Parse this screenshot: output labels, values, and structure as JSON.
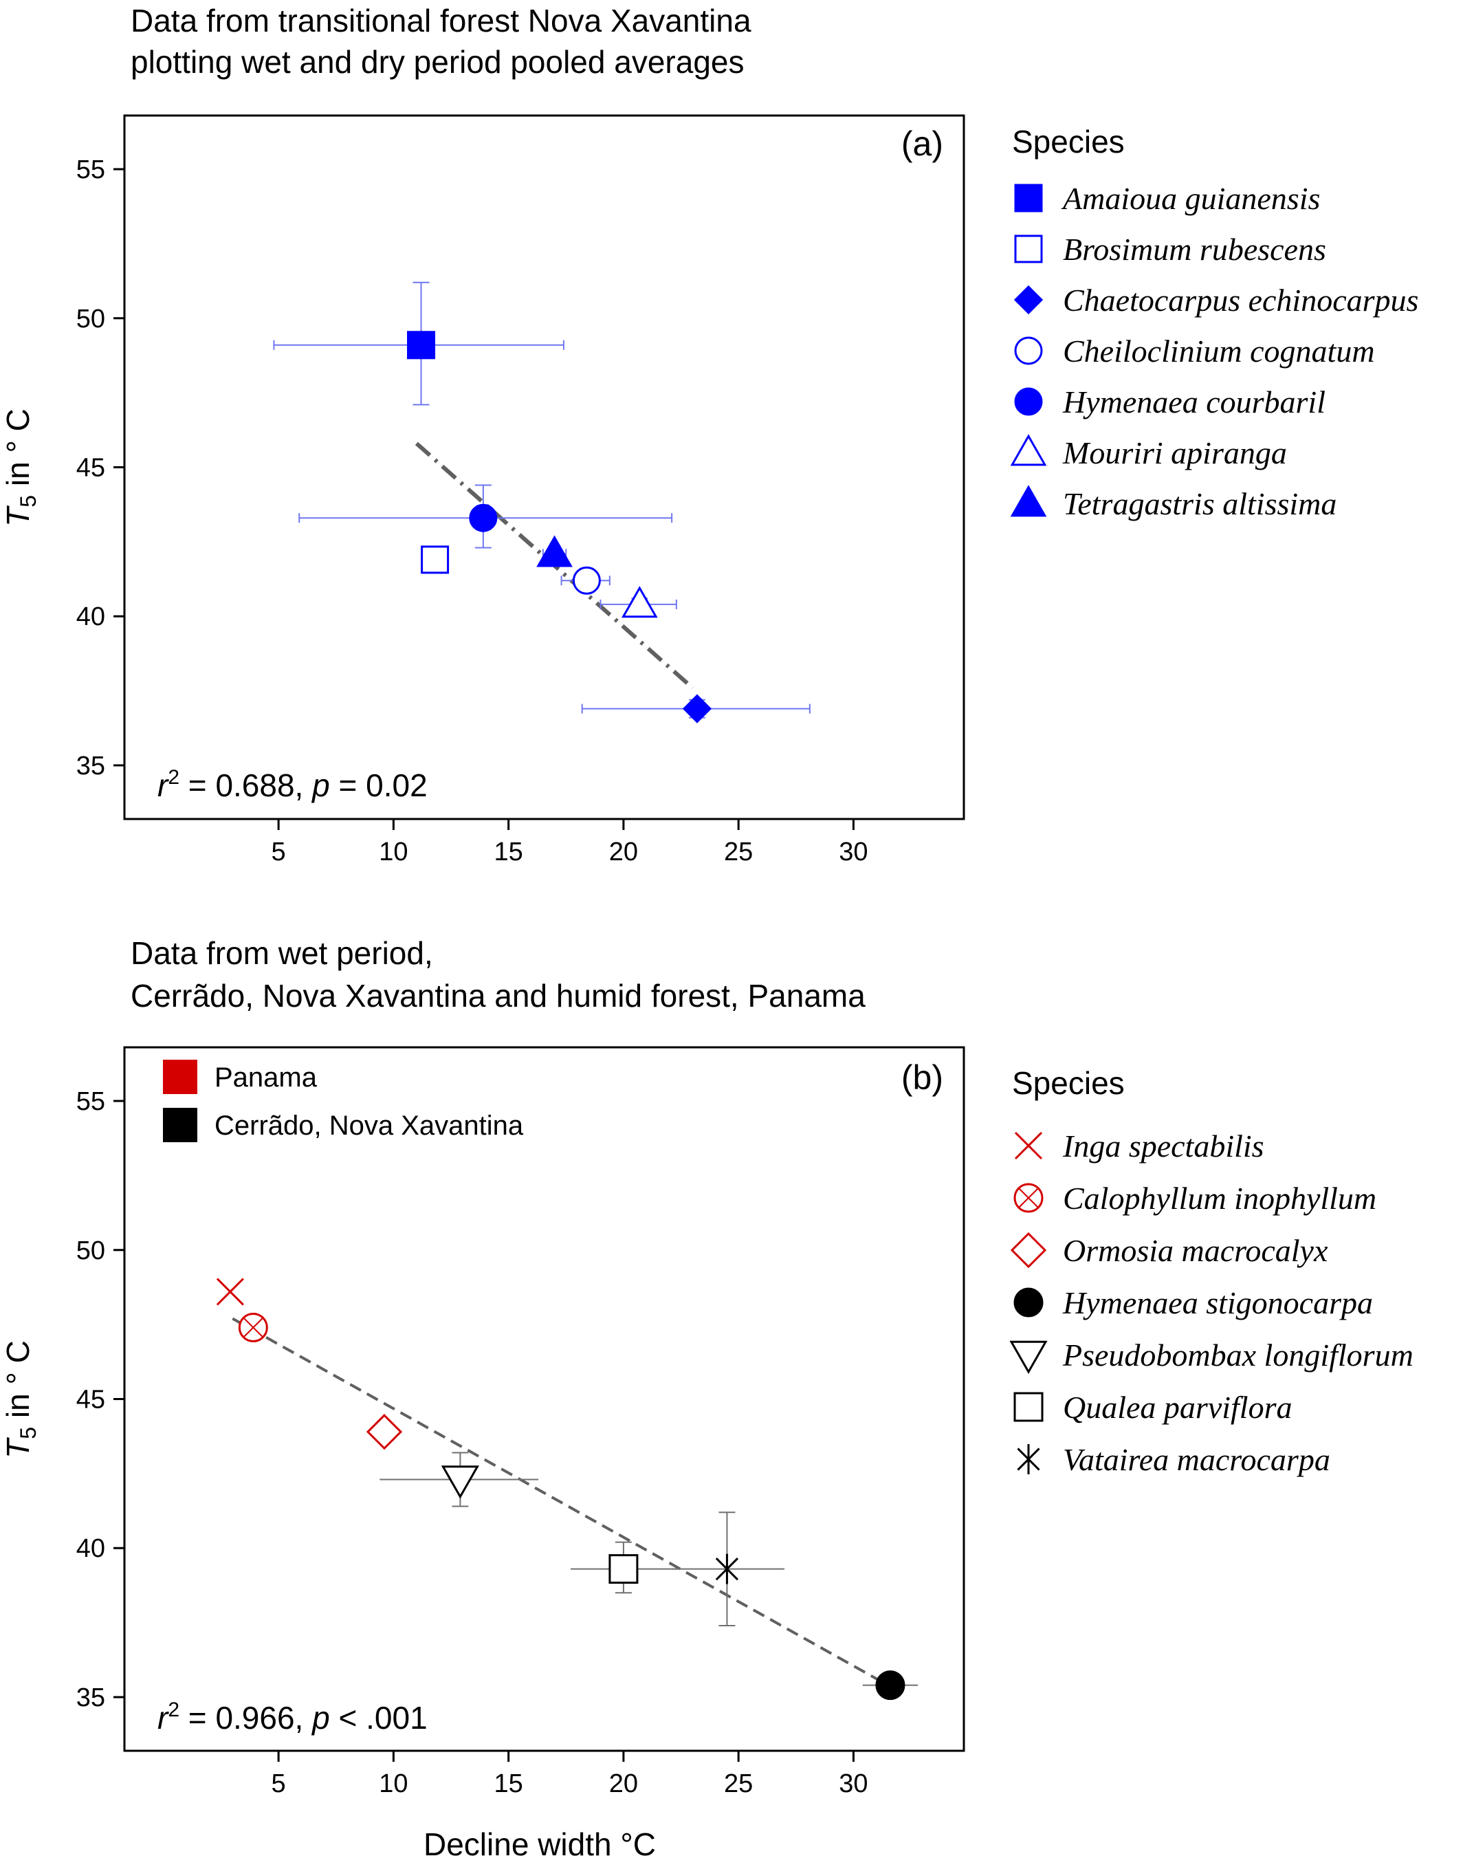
{
  "figure_title_a": [
    "Data from transitional forest Nova Xavantina",
    "plotting wet and dry period pooled averages"
  ],
  "figure_title_b": [
    "Data from wet period,",
    "Cerrãdo, Nova Xavantina and humid forest, Panama"
  ],
  "x_axis_label": "Decline width °C",
  "legend_heading": "Species",
  "site_legend": [
    {
      "label": "Panama",
      "color": "#d40000"
    },
    {
      "label": "Cerrãdo, Nova Xavantina",
      "color": "#000000"
    }
  ],
  "chart_data": [
    {
      "type": "scatter",
      "panel_label": "(a)",
      "ylabel": "T5 in ° C",
      "ylabel_parts": {
        "symbol": "T",
        "subscript": "5",
        "rest": " in ° C"
      },
      "xticks": [
        5,
        10,
        15,
        20,
        25,
        30
      ],
      "yticks": [
        35,
        40,
        45,
        50,
        55
      ],
      "xlim": [
        -1.7,
        34.8
      ],
      "ylim": [
        33.2,
        56.8
      ],
      "stat_text": {
        "r_symbol": "r",
        "sup": "2",
        "mid": " = 0.688, ",
        "p_symbol": "p",
        "end": " = 0.02"
      },
      "fit_line": {
        "x": [
          11.0,
          23.0
        ],
        "y": [
          45.8,
          37.6
        ],
        "style": "dash-dot",
        "color": "#606060"
      },
      "errorbar_color": "#6f77f0",
      "points": [
        {
          "name": "Amaioua guianensis",
          "marker": "square-filled",
          "color": "#0000ff",
          "x": 11.2,
          "y": 49.1,
          "xerr": [
            4.8,
            17.4
          ],
          "yerr": [
            47.1,
            51.2
          ]
        },
        {
          "name": "Brosimum rubescens",
          "marker": "square-open",
          "color": "#0000ff",
          "x": 11.8,
          "y": 41.9,
          "xerr": [
            11.5,
            12.1
          ],
          "yerr": [
            41.85,
            41.95
          ]
        },
        {
          "name": "Chaetocarpus echinocarpus",
          "marker": "diamond-filled",
          "color": "#0000ff",
          "x": 23.2,
          "y": 36.9,
          "xerr": [
            18.2,
            28.1
          ],
          "yerr": [
            36.6,
            37.2
          ]
        },
        {
          "name": "Cheiloclinium cognatum",
          "marker": "circle-open",
          "color": "#0000ff",
          "x": 18.4,
          "y": 41.2,
          "xerr": [
            17.3,
            19.4
          ],
          "yerr": [
            41.1,
            41.3
          ]
        },
        {
          "name": "Hymenaea courbaril",
          "marker": "circle-filled",
          "color": "#0000ff",
          "x": 13.9,
          "y": 43.3,
          "xerr": [
            5.9,
            22.1
          ],
          "yerr": [
            42.3,
            44.4
          ]
        },
        {
          "name": "Mouriri apiranga",
          "marker": "triangle-up-open",
          "color": "#0000ff",
          "x": 20.7,
          "y": 40.4,
          "xerr": [
            19.0,
            22.3
          ],
          "yerr": [
            40.2,
            40.6
          ]
        },
        {
          "name": "Tetragastris altissima",
          "marker": "triangle-up-filled",
          "color": "#0000ff",
          "x": 17.0,
          "y": 42.1,
          "xerr": [
            16.5,
            17.5
          ],
          "yerr": [
            42.0,
            42.2
          ]
        }
      ]
    },
    {
      "type": "scatter",
      "panel_label": "(b)",
      "ylabel": "T5 in ° C",
      "ylabel_parts": {
        "symbol": "T",
        "subscript": "5",
        "rest": " in ° C"
      },
      "xlabel": "Decline width °C",
      "xticks": [
        5,
        10,
        15,
        20,
        25,
        30
      ],
      "yticks": [
        35,
        40,
        45,
        50,
        55
      ],
      "xlim": [
        -1.7,
        34.8
      ],
      "ylim": [
        33.2,
        56.8
      ],
      "stat_text": {
        "r_symbol": "r",
        "sup": "2",
        "mid": " = 0.966, ",
        "p_symbol": "p",
        "end": " < .001"
      },
      "fit_line": {
        "x": [
          3.0,
          31.5
        ],
        "y": [
          47.7,
          35.4
        ],
        "style": "dashed",
        "color": "#606060"
      },
      "errorbar_color": "#707070",
      "points": [
        {
          "name": "Inga spectabilis",
          "marker": "x",
          "color": "#d40000",
          "x": 2.9,
          "y": 48.6
        },
        {
          "name": "Calophyllum inophyllum",
          "marker": "circle-x",
          "color": "#d40000",
          "x": 3.9,
          "y": 47.4
        },
        {
          "name": "Ormosia macrocalyx",
          "marker": "diamond-open",
          "color": "#d40000",
          "x": 9.6,
          "y": 43.9
        },
        {
          "name": "Hymenaea stigonocarpa",
          "marker": "circle-filled",
          "color": "#000000",
          "x": 31.6,
          "y": 35.4,
          "xerr": [
            30.4,
            32.8
          ],
          "yerr": [
            35.3,
            35.5
          ]
        },
        {
          "name": "Pseudobombax longiflorum",
          "marker": "triangle-down-open",
          "color": "#000000",
          "x": 12.9,
          "y": 42.3,
          "xerr": [
            9.4,
            16.3
          ],
          "yerr": [
            41.4,
            43.2
          ]
        },
        {
          "name": "Qualea parviflora",
          "marker": "square-x",
          "color": "#000000",
          "x": 20.0,
          "y": 39.3,
          "xerr": [
            17.7,
            22.3
          ],
          "yerr": [
            38.5,
            40.2
          ]
        },
        {
          "name": "Vatairea macrocarpa",
          "marker": "asterisk",
          "color": "#000000",
          "x": 24.5,
          "y": 39.3,
          "xerr": [
            22.1,
            27.0
          ],
          "yerr": [
            37.4,
            41.2
          ]
        }
      ]
    }
  ]
}
